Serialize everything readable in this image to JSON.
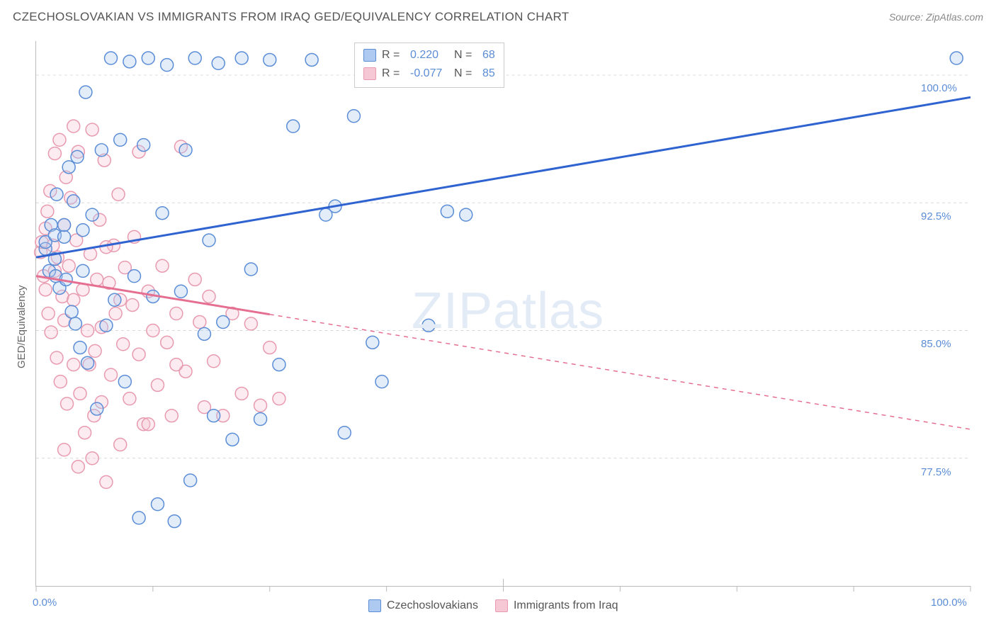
{
  "title": "CZECHOSLOVAKIAN VS IMMIGRANTS FROM IRAQ GED/EQUIVALENCY CORRELATION CHART",
  "source": "Source: ZipAtlas.com",
  "watermark": "ZIPatlas",
  "ylabel": "GED/Equivalency",
  "background_color": "#ffffff",
  "grid_color": "#d8d8d8",
  "axis_color": "#bbbbbb",
  "text_color": "#555555",
  "value_color": "#5b8dd6",
  "chart": {
    "type": "scatter",
    "xlim": [
      0,
      100
    ],
    "ylim": [
      70,
      102
    ],
    "y_ticks": [
      {
        "v": 77.5,
        "label": "77.5%"
      },
      {
        "v": 85.0,
        "label": "85.0%"
      },
      {
        "v": 92.5,
        "label": "92.5%"
      },
      {
        "v": 100.0,
        "label": "100.0%"
      }
    ],
    "x_ticks_major": [
      0,
      50,
      100
    ],
    "x_ticks_minor": [
      12.5,
      25,
      37.5,
      62.5,
      75,
      87.5
    ],
    "x_tick_labels": [
      {
        "v": 0,
        "label": "0.0%"
      },
      {
        "v": 100,
        "label": "100.0%"
      }
    ],
    "marker_radius": 9,
    "marker_stroke_width": 1.5,
    "marker_fill_opacity": 0.35,
    "line_width": 3
  },
  "series": [
    {
      "name": "Czechoslovakians",
      "color_stroke": "#5b8dd6",
      "color_fill": "#aecaf0",
      "line_color": "#2f63d0",
      "R": "0.220",
      "N": "68",
      "trend": {
        "x1": 0,
        "y1": 89.3,
        "x2": 100,
        "y2": 98.7,
        "solid_until": 100
      },
      "points": [
        [
          1,
          89.8
        ],
        [
          1,
          90.2
        ],
        [
          1.4,
          88.5
        ],
        [
          1.6,
          91.2
        ],
        [
          2,
          89.2
        ],
        [
          2,
          90.6
        ],
        [
          2.1,
          88.2
        ],
        [
          2.2,
          93.0
        ],
        [
          2.5,
          87.5
        ],
        [
          3,
          90.5
        ],
        [
          3,
          91.2
        ],
        [
          3.2,
          88.0
        ],
        [
          3.5,
          94.6
        ],
        [
          3.8,
          86.1
        ],
        [
          4,
          92.6
        ],
        [
          4.2,
          85.4
        ],
        [
          4.4,
          95.2
        ],
        [
          4.7,
          84.0
        ],
        [
          5,
          88.5
        ],
        [
          5,
          90.9
        ],
        [
          5.3,
          99.0
        ],
        [
          5.5,
          83.1
        ],
        [
          6,
          91.8
        ],
        [
          6.5,
          80.4
        ],
        [
          7,
          95.6
        ],
        [
          7.5,
          85.3
        ],
        [
          8,
          101.0
        ],
        [
          8.4,
          86.8
        ],
        [
          9,
          96.2
        ],
        [
          9.5,
          82.0
        ],
        [
          10,
          100.8
        ],
        [
          10.5,
          88.2
        ],
        [
          11,
          74.0
        ],
        [
          11.5,
          95.9
        ],
        [
          12,
          101.0
        ],
        [
          12.5,
          87.0
        ],
        [
          13,
          74.8
        ],
        [
          13.5,
          91.9
        ],
        [
          14,
          100.6
        ],
        [
          14.8,
          73.8
        ],
        [
          15.5,
          87.3
        ],
        [
          16,
          95.6
        ],
        [
          16.5,
          76.2
        ],
        [
          17,
          101.0
        ],
        [
          18,
          84.8
        ],
        [
          18.5,
          90.3
        ],
        [
          19,
          80.0
        ],
        [
          19.5,
          100.7
        ],
        [
          20,
          85.5
        ],
        [
          21,
          78.6
        ],
        [
          22,
          101.0
        ],
        [
          23,
          88.6
        ],
        [
          24,
          79.8
        ],
        [
          25,
          100.9
        ],
        [
          26,
          83.0
        ],
        [
          27.5,
          97.0
        ],
        [
          29.5,
          100.9
        ],
        [
          31,
          91.8
        ],
        [
          32,
          92.3
        ],
        [
          33,
          79.0
        ],
        [
          34,
          97.6
        ],
        [
          36,
          84.3
        ],
        [
          37,
          82.0
        ],
        [
          42,
          85.3
        ],
        [
          44,
          92.0
        ],
        [
          46,
          91.8
        ],
        [
          47,
          101.0
        ],
        [
          98.5,
          101.0
        ]
      ]
    },
    {
      "name": "Immigrants from Iraq",
      "color_stroke": "#e89ab0",
      "color_fill": "#f6c7d4",
      "line_color": "#e56f91",
      "R": "-0.077",
      "N": "85",
      "trend": {
        "x1": 0,
        "y1": 88.2,
        "x2": 100,
        "y2": 79.2,
        "solid_until": 25
      },
      "points": [
        [
          0.5,
          89.6
        ],
        [
          0.6,
          90.2
        ],
        [
          0.8,
          88.2
        ],
        [
          1,
          91.0
        ],
        [
          1,
          87.4
        ],
        [
          1.2,
          92.0
        ],
        [
          1.3,
          86.0
        ],
        [
          1.5,
          93.2
        ],
        [
          1.6,
          84.9
        ],
        [
          1.8,
          90.0
        ],
        [
          2,
          95.4
        ],
        [
          2,
          88.5
        ],
        [
          2.2,
          83.4
        ],
        [
          2.3,
          89.3
        ],
        [
          2.5,
          96.2
        ],
        [
          2.6,
          82.0
        ],
        [
          2.8,
          87.0
        ],
        [
          3,
          91.2
        ],
        [
          3,
          85.6
        ],
        [
          3.2,
          94.0
        ],
        [
          3.3,
          80.7
        ],
        [
          3.5,
          88.8
        ],
        [
          3.7,
          92.8
        ],
        [
          4,
          83.0
        ],
        [
          4,
          86.8
        ],
        [
          4.3,
          90.3
        ],
        [
          4.5,
          95.5
        ],
        [
          4.7,
          81.3
        ],
        [
          5,
          87.4
        ],
        [
          5.2,
          79.0
        ],
        [
          5.5,
          85.0
        ],
        [
          5.8,
          89.5
        ],
        [
          6,
          96.8
        ],
        [
          6,
          77.5
        ],
        [
          6.3,
          83.8
        ],
        [
          6.5,
          88.0
        ],
        [
          6.8,
          91.5
        ],
        [
          7,
          80.8
        ],
        [
          7,
          85.2
        ],
        [
          7.3,
          95.0
        ],
        [
          7.5,
          76.1
        ],
        [
          7.8,
          87.8
        ],
        [
          8,
          82.4
        ],
        [
          8.3,
          90.0
        ],
        [
          8.5,
          86.0
        ],
        [
          9,
          78.3
        ],
        [
          9.3,
          84.2
        ],
        [
          9.5,
          88.7
        ],
        [
          10,
          81.0
        ],
        [
          10.3,
          86.5
        ],
        [
          10.5,
          90.5
        ],
        [
          11,
          83.6
        ],
        [
          11.5,
          79.5
        ],
        [
          12,
          87.3
        ],
        [
          12.5,
          85.0
        ],
        [
          13,
          81.8
        ],
        [
          13.5,
          88.8
        ],
        [
          14,
          84.3
        ],
        [
          14.5,
          80.0
        ],
        [
          15,
          86.0
        ],
        [
          15.5,
          95.8
        ],
        [
          16,
          82.6
        ],
        [
          17,
          88.0
        ],
        [
          17.5,
          85.5
        ],
        [
          18,
          80.5
        ],
        [
          18.5,
          87.0
        ],
        [
          19,
          83.2
        ],
        [
          20,
          80.0
        ],
        [
          21,
          86.0
        ],
        [
          22,
          81.3
        ],
        [
          23,
          85.4
        ],
        [
          24,
          80.6
        ],
        [
          25,
          84.0
        ],
        [
          26,
          81.0
        ],
        [
          11,
          95.5
        ],
        [
          4,
          97.0
        ],
        [
          5.7,
          83.0
        ],
        [
          7.5,
          89.9
        ],
        [
          8.8,
          93.0
        ],
        [
          3,
          78.0
        ],
        [
          4.5,
          77.0
        ],
        [
          6.2,
          80.0
        ],
        [
          9,
          86.8
        ],
        [
          12,
          79.5
        ],
        [
          15,
          83.0
        ]
      ]
    }
  ],
  "legend_top": {
    "R_label": "R =",
    "N_label": "N ="
  },
  "legend_bottom_items": [
    "Czechoslovakians",
    "Immigrants from Iraq"
  ]
}
